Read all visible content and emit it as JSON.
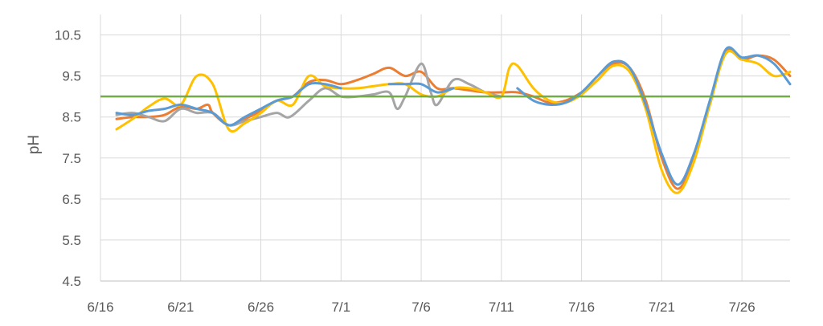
{
  "chart_data": {
    "type": "line",
    "ylabel": "pH",
    "xlabel": "",
    "title": "",
    "ylim": [
      4.5,
      11.0
    ],
    "y_ticks": [
      "4.5",
      "5.5",
      "6.5",
      "7.5",
      "8.5",
      "9.5",
      "10.5"
    ],
    "x_ticks": [
      "6/16",
      "6/21",
      "6/26",
      "7/1",
      "7/6",
      "7/11",
      "7/16",
      "7/21",
      "7/26"
    ],
    "x_start": "6/16",
    "x_end": "7/29",
    "grid": true,
    "legend": "none",
    "reference_line": {
      "y": 9.0,
      "color": "#70AD47"
    },
    "series": [
      {
        "color": "#ED7D31",
        "points": [
          [
            "6/17",
            8.45
          ],
          [
            "6/18",
            8.5
          ],
          [
            "6/19",
            8.5
          ],
          [
            "6/20",
            8.55
          ],
          [
            "6/21",
            8.75
          ],
          [
            "6/22",
            8.7
          ],
          [
            "6/22.7",
            8.8
          ],
          [
            "6/23",
            8.6
          ],
          [
            "6/24",
            8.3
          ],
          [
            "6/25",
            8.45
          ],
          [
            "6/26",
            8.65
          ],
          [
            "6/27",
            8.9
          ],
          [
            "6/28",
            9.0
          ],
          [
            "6/29",
            9.35
          ],
          [
            "6/30",
            9.4
          ],
          [
            "7/1",
            9.3
          ],
          [
            "7/2",
            9.4
          ],
          [
            "7/3",
            9.55
          ],
          [
            "7/4",
            9.7
          ],
          [
            "7/5",
            9.5
          ],
          [
            "7/6",
            9.6
          ],
          [
            "7/7",
            9.2
          ],
          [
            "7/8",
            9.2
          ],
          [
            "7/9",
            9.15
          ],
          [
            "7/10",
            9.1
          ],
          [
            "7/11",
            9.1
          ],
          [
            "7/12",
            9.1
          ],
          [
            "7/13",
            9.0
          ],
          [
            "7/14",
            8.85
          ],
          [
            "7/15",
            8.9
          ],
          [
            "7/16",
            9.1
          ],
          [
            "7/17",
            9.4
          ],
          [
            "7/18",
            9.8
          ],
          [
            "7/19",
            9.7
          ],
          [
            "7/20",
            8.9
          ],
          [
            "7/21",
            7.5
          ],
          [
            "7/22",
            6.75
          ],
          [
            "7/23",
            7.5
          ],
          [
            "7/24",
            8.8
          ],
          [
            "7/25",
            10.1
          ],
          [
            "7/26",
            9.9
          ],
          [
            "7/27",
            10.0
          ],
          [
            "7/28",
            9.9
          ],
          [
            "7/29",
            9.5
          ]
        ]
      },
      {
        "color": "#A5A5A5",
        "points": [
          [
            "6/17",
            8.55
          ],
          [
            "6/18",
            8.6
          ],
          [
            "6/19",
            8.5
          ],
          [
            "6/20",
            8.4
          ],
          [
            "6/21",
            8.7
          ],
          [
            "6/22",
            8.6
          ],
          [
            "6/23",
            8.6
          ],
          [
            "6/24",
            8.3
          ],
          [
            "6/25",
            8.4
          ],
          [
            "6/26",
            8.5
          ],
          [
            "6/27",
            8.6
          ],
          [
            "6/27.8",
            8.5
          ],
          [
            "6/29",
            8.9
          ],
          [
            "6/30",
            9.2
          ],
          [
            "7/1",
            9.0
          ],
          [
            "7/2",
            9.0
          ],
          [
            "7/3",
            9.05
          ],
          [
            "7/4",
            9.1
          ],
          [
            "7/4.5",
            8.7
          ],
          [
            "7/5",
            9.0
          ],
          [
            "7/6",
            9.8
          ],
          [
            "7/6.6",
            9.1
          ],
          [
            "7/7",
            8.8
          ],
          [
            "7/8",
            9.4
          ],
          [
            "7/9",
            9.3
          ],
          [
            "7/10",
            9.1
          ],
          [
            "7/11",
            9.0
          ]
        ]
      },
      {
        "color": "#FFC000",
        "points": [
          [
            "6/17",
            8.2
          ],
          [
            "6/18",
            8.45
          ],
          [
            "6/19",
            8.75
          ],
          [
            "6/20",
            8.95
          ],
          [
            "6/21",
            8.8
          ],
          [
            "6/22",
            9.5
          ],
          [
            "6/23",
            9.3
          ],
          [
            "6/24",
            8.2
          ],
          [
            "6/25",
            8.35
          ],
          [
            "6/26",
            8.6
          ],
          [
            "6/27",
            8.9
          ],
          [
            "6/28",
            8.8
          ],
          [
            "6/29",
            9.5
          ],
          [
            "6/30",
            9.25
          ],
          [
            "7/1",
            9.2
          ],
          [
            "7/2",
            9.2
          ],
          [
            "7/3",
            9.25
          ],
          [
            "7/4",
            9.3
          ],
          [
            "7/5",
            9.3
          ],
          [
            "7/6",
            9.05
          ],
          [
            "7/7",
            9.0
          ],
          [
            "7/8",
            9.2
          ],
          [
            "7/9",
            9.2
          ],
          [
            "7/10",
            9.1
          ],
          [
            "7/11",
            9.0
          ],
          [
            "7/11.5",
            9.7
          ],
          [
            "7/12",
            9.75
          ],
          [
            "7/13",
            9.2
          ],
          [
            "7/14",
            8.9
          ],
          [
            "7/15",
            8.85
          ],
          [
            "7/16",
            9.05
          ],
          [
            "7/17",
            9.4
          ],
          [
            "7/18",
            9.75
          ],
          [
            "7/19",
            9.6
          ],
          [
            "7/20",
            8.7
          ],
          [
            "7/21",
            7.2
          ],
          [
            "7/22",
            6.65
          ],
          [
            "7/23",
            7.4
          ],
          [
            "7/24",
            8.8
          ],
          [
            "7/25",
            10.05
          ],
          [
            "7/26",
            9.9
          ],
          [
            "7/27",
            9.8
          ],
          [
            "7/28",
            9.5
          ],
          [
            "7/29",
            9.6
          ]
        ]
      },
      {
        "color": "#5B9BD5",
        "points": [
          [
            "6/17",
            8.6
          ],
          [
            "6/18",
            8.55
          ],
          [
            "6/19",
            8.65
          ],
          [
            "6/20",
            8.7
          ],
          [
            "6/21",
            8.8
          ],
          [
            "6/22",
            8.7
          ],
          [
            "6/23",
            8.6
          ],
          [
            "6/24",
            8.3
          ],
          [
            "6/25",
            8.5
          ],
          [
            "6/26",
            8.7
          ],
          [
            "6/27",
            8.9
          ],
          [
            "6/28",
            9.0
          ],
          [
            "6/29",
            9.3
          ],
          [
            "6/30",
            9.3
          ],
          [
            "7/1",
            9.2
          ]
        ],
        "points_b": [
          [
            "7/4",
            9.3
          ],
          [
            "7/5",
            9.3
          ],
          [
            "7/6",
            9.3
          ],
          [
            "7/7",
            9.1
          ],
          [
            "7/8",
            9.2
          ]
        ],
        "points_c": [
          [
            "7/12",
            9.2
          ],
          [
            "7/13",
            8.9
          ],
          [
            "7/14",
            8.8
          ],
          [
            "7/15",
            8.85
          ],
          [
            "7/16",
            9.1
          ],
          [
            "7/17",
            9.5
          ],
          [
            "7/18",
            9.85
          ],
          [
            "7/19",
            9.7
          ],
          [
            "7/20",
            8.8
          ],
          [
            "7/21",
            7.6
          ],
          [
            "7/22",
            6.85
          ],
          [
            "7/23",
            7.6
          ],
          [
            "7/24",
            8.9
          ],
          [
            "7/25",
            10.15
          ],
          [
            "7/26",
            9.95
          ],
          [
            "7/27",
            10.0
          ],
          [
            "7/28",
            9.8
          ],
          [
            "7/29",
            9.3
          ]
        ]
      }
    ]
  }
}
